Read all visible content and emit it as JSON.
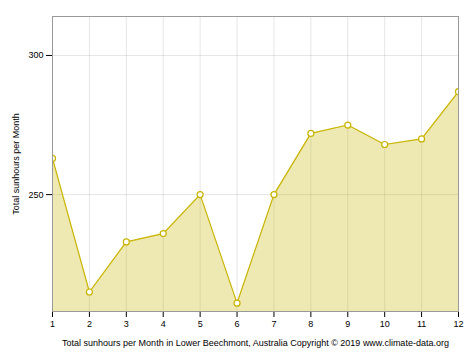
{
  "chart_data": {
    "type": "area",
    "x": [
      1,
      2,
      3,
      4,
      5,
      6,
      7,
      8,
      9,
      10,
      11,
      12
    ],
    "values": [
      263,
      215,
      233,
      236,
      250,
      211,
      250,
      272,
      275,
      268,
      270,
      287
    ],
    "color": "#c8b400",
    "marker": "circle",
    "xlabel": "Total sunhours per Month in Lower Beechmont, Australia Copyright © 2019 www.climate-data.org",
    "ylabel": "Total sunhours per Month",
    "xlim": [
      1,
      12
    ],
    "ylim": [
      208,
      314
    ],
    "xticks": [
      1,
      2,
      3,
      4,
      5,
      6,
      7,
      8,
      9,
      10,
      11,
      12
    ],
    "yticks": [
      250,
      300
    ],
    "grid": true
  }
}
